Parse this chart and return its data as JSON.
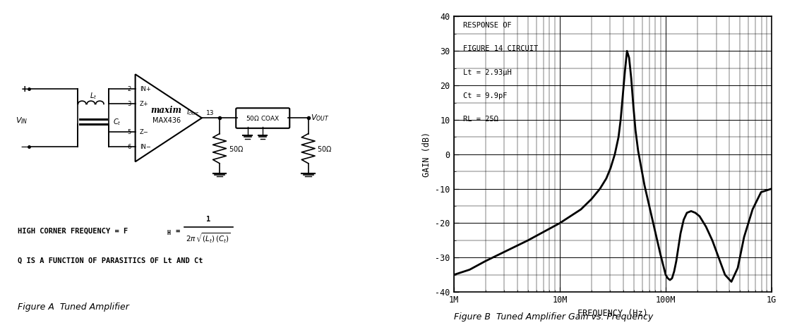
{
  "title_left": "Figure A  Tuned Amplifier",
  "title_right": "Figure B  Tuned Amplifier Gain vs. Frequency",
  "graph_annotation_line1": "RESPONSE OF",
  "graph_annotation_line2": "FIGURE 14 CIRCUIT",
  "graph_annotation_line3": "Lt = 2.93μH",
  "graph_annotation_line4": "Ct = 9.9pF",
  "graph_annotation_line5": "RL = 25Ω",
  "xlabel": "FREQUENCY (Hz)",
  "ylabel": "GAIN (dB)",
  "ylim": [
    -40,
    40
  ],
  "yticks": [
    -40,
    -30,
    -20,
    -10,
    0,
    10,
    20,
    30,
    40
  ],
  "background_color": "#ffffff",
  "line_color": "#000000",
  "curve_freq_log": [
    6.0,
    6.15,
    6.3,
    6.5,
    6.7,
    6.85,
    7.0,
    7.1,
    7.2,
    7.3,
    7.38,
    7.44,
    7.48,
    7.52,
    7.555,
    7.575,
    7.595,
    7.615,
    7.635,
    7.655,
    7.675,
    7.695,
    7.715,
    7.74,
    7.77,
    7.8,
    7.83,
    7.86,
    7.89,
    7.92,
    7.95,
    7.975,
    8.0,
    8.02,
    8.04,
    8.06,
    8.08,
    8.1,
    8.12,
    8.14,
    8.17,
    8.2,
    8.24,
    8.28,
    8.32,
    8.38,
    8.44,
    8.5,
    8.56,
    8.62,
    8.68,
    8.74,
    8.82,
    8.9,
    9.0
  ],
  "curve_gain": [
    -35,
    -33.5,
    -31,
    -28,
    -25,
    -22.5,
    -20,
    -18,
    -16,
    -13,
    -10,
    -7,
    -4,
    0,
    5,
    10,
    17,
    24,
    30,
    28,
    22,
    14,
    7,
    1,
    -4,
    -9,
    -13,
    -17,
    -21,
    -25,
    -29,
    -32,
    -35,
    -36,
    -36.5,
    -36,
    -34,
    -31,
    -27,
    -23,
    -19,
    -17,
    -16.5,
    -17,
    -18,
    -21,
    -25,
    -30,
    -35,
    -37,
    -33,
    -24,
    -16,
    -11,
    -10
  ],
  "left_panel_note1": "HIGH CORNER FREQUENCY = FH =",
  "left_panel_note2": "Q IS A FUNCTION OF PARASITICS OF Lt AND Ct"
}
